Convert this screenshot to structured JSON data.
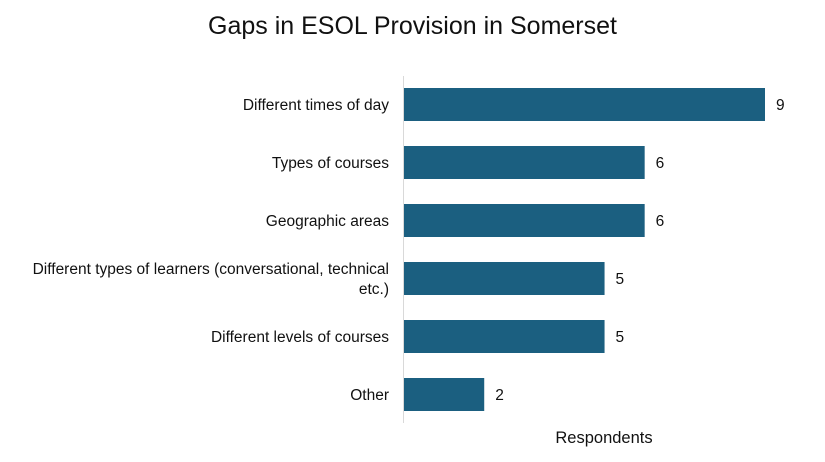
{
  "chart_data": {
    "type": "bar",
    "orientation": "horizontal",
    "title": "Gaps in ESOL Provision in Somerset",
    "xlabel": "Respondents",
    "ylabel": "",
    "categories": [
      [
        "Different times of day"
      ],
      [
        "Types of courses"
      ],
      [
        "Geographic areas"
      ],
      [
        "Different types of learners (conversational, technical",
        "etc.)"
      ],
      [
        "Different levels of courses"
      ],
      [
        "Other"
      ]
    ],
    "values": [
      9,
      6,
      6,
      5,
      5,
      2
    ],
    "xlim": [
      0,
      9
    ],
    "grid": false,
    "legend": "none",
    "data_labels": true,
    "bar_color": "#1b5f80"
  }
}
